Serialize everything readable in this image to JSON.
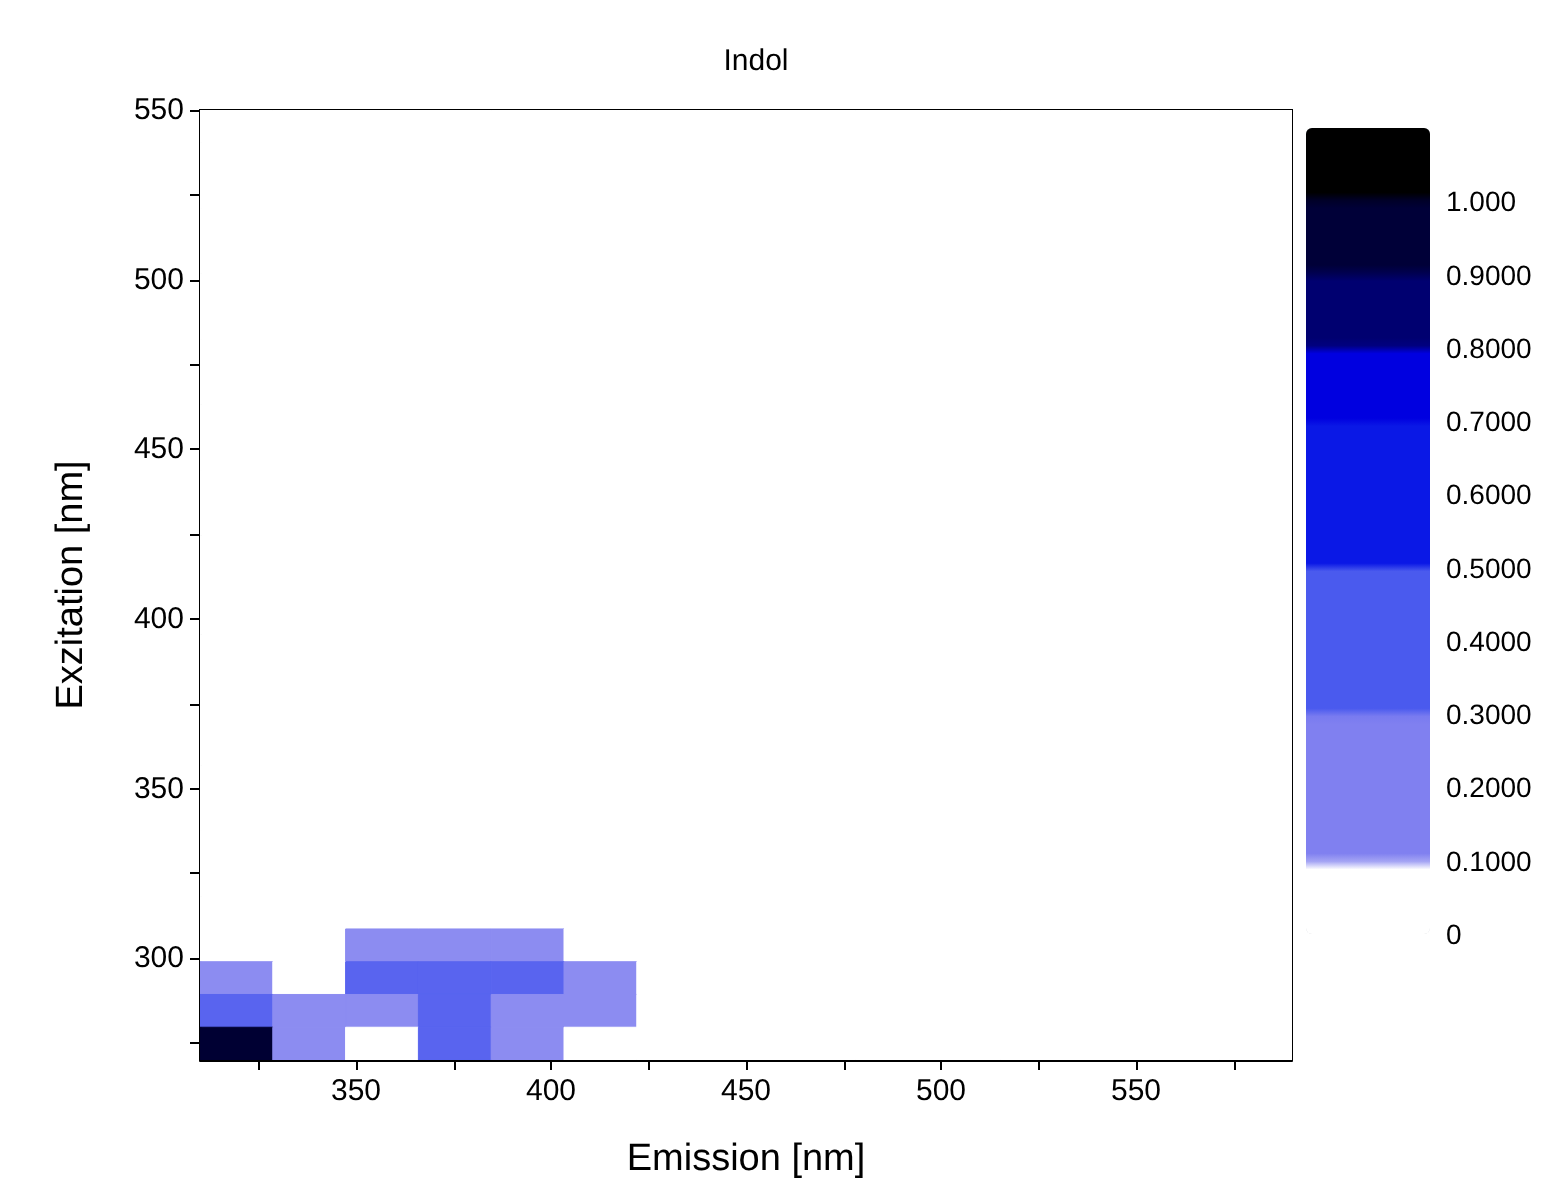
{
  "chart_data": {
    "type": "heatmap",
    "title": "Indol",
    "xlabel": "Emission [nm]",
    "ylabel": "Exzitation [nm]",
    "xlim": [
      310,
      590
    ],
    "ylim": [
      270,
      550
    ],
    "xticks": [
      {
        "value": 325,
        "label": null
      },
      350,
      {
        "value": 375,
        "label": null
      },
      400,
      {
        "value": 425,
        "label": null
      },
      450,
      {
        "value": 475,
        "label": null
      },
      500,
      {
        "value": 525,
        "label": null
      },
      550,
      {
        "value": 575,
        "label": null
      }
    ],
    "yticks": [
      {
        "value": 275,
        "label": null
      },
      300,
      {
        "value": 325,
        "label": null
      },
      350,
      {
        "value": 375,
        "label": null
      },
      400,
      {
        "value": 425,
        "label": null
      },
      450,
      {
        "value": 475,
        "label": null
      },
      500,
      {
        "value": 525,
        "label": null
      },
      550
    ],
    "cells": [
      [
        0,
        0,
        0,
        0,
        0,
        0,
        0,
        0,
        0,
        0,
        0,
        0,
        0,
        0,
        0
      ],
      [
        0,
        0,
        0,
        0,
        0,
        0,
        0,
        0,
        0,
        0,
        0,
        0,
        0,
        0,
        0
      ],
      [
        0,
        0,
        0,
        0,
        0,
        0,
        0,
        0,
        0,
        0,
        0,
        0,
        0,
        0,
        0
      ],
      [
        0,
        0,
        0,
        0,
        0,
        0,
        0,
        0,
        0,
        0,
        0,
        0,
        0,
        0,
        0
      ],
      [
        0,
        0,
        0,
        0,
        0,
        0,
        0,
        0,
        0,
        0,
        0,
        0,
        0,
        0,
        0
      ],
      [
        0,
        0,
        0,
        0,
        0,
        0,
        0,
        0,
        0,
        0,
        0,
        0,
        0,
        0,
        0
      ],
      [
        0,
        0,
        0,
        0,
        0,
        0,
        0,
        0,
        0,
        0,
        0,
        0,
        0,
        0,
        0
      ],
      [
        0,
        0,
        0,
        0,
        0,
        0,
        0,
        0,
        0,
        0,
        0,
        0,
        0,
        0,
        0
      ],
      [
        0,
        0,
        0,
        0,
        0,
        0,
        0,
        0,
        0,
        0,
        0,
        0,
        0,
        0,
        0
      ],
      [
        0,
        0,
        0,
        0,
        0,
        0,
        0,
        0,
        0,
        0,
        0,
        0,
        0,
        0,
        0
      ],
      [
        0,
        0,
        0,
        0,
        0,
        0,
        0,
        0,
        0,
        0,
        0,
        0,
        0,
        0,
        0
      ],
      [
        0,
        0,
        0,
        0,
        0,
        0,
        0,
        0,
        0,
        0,
        0,
        0,
        0,
        0,
        0
      ],
      [
        0,
        0,
        0,
        0,
        0,
        0,
        0,
        0,
        0,
        0,
        0,
        0,
        0,
        0,
        0
      ],
      [
        0,
        0,
        0,
        0,
        0,
        0,
        0,
        0,
        0,
        0,
        0,
        0,
        0,
        0,
        0
      ],
      [
        0,
        0,
        0,
        0,
        0,
        0,
        0,
        0,
        0,
        0,
        0,
        0,
        0,
        0,
        0
      ],
      [
        0,
        0,
        0,
        0,
        0,
        0,
        0,
        0,
        0,
        0,
        0,
        0,
        0,
        0,
        0
      ],
      [
        0,
        0,
        0,
        0,
        0,
        0,
        0,
        0,
        0,
        0,
        0,
        0,
        0,
        0,
        0
      ],
      [
        0,
        0,
        0,
        0,
        0,
        0,
        0,
        0,
        0,
        0,
        0,
        0,
        0,
        0,
        0
      ],
      [
        0,
        0,
        0,
        0,
        0,
        0,
        0,
        0,
        0,
        0,
        0,
        0,
        0,
        0,
        0
      ],
      [
        0,
        0,
        0,
        0,
        0,
        0,
        0,
        0,
        0,
        0,
        0,
        0,
        0,
        0,
        0
      ],
      [
        0,
        0,
        0,
        0,
        0,
        0,
        0,
        0,
        0,
        0,
        0,
        0,
        0,
        0,
        0
      ],
      [
        0,
        0,
        0,
        0,
        0,
        0,
        0,
        0,
        0,
        0,
        0,
        0,
        0,
        0,
        0
      ],
      [
        0,
        0,
        0,
        0,
        0,
        0,
        0,
        0,
        0,
        0,
        0,
        0,
        0,
        0,
        0
      ],
      [
        0,
        0,
        0,
        0,
        0,
        0,
        0,
        0,
        0,
        0,
        0,
        0,
        0,
        0,
        0
      ],
      [
        0,
        0,
        0,
        0,
        0,
        0,
        0,
        0,
        0,
        0,
        0,
        0,
        0,
        0,
        0
      ],
      [
        0,
        0,
        0.1,
        0.1,
        0.1,
        0,
        0,
        0,
        0,
        0,
        0,
        0,
        0,
        0,
        0
      ],
      [
        0.1,
        0,
        0.3,
        0.3,
        0.3,
        0.1,
        0,
        0,
        0,
        0,
        0,
        0,
        0,
        0,
        0
      ],
      [
        0.3,
        0.1,
        0.1,
        0.3,
        0.1,
        0.1,
        0,
        0,
        0,
        0,
        0,
        0,
        0,
        0,
        0
      ],
      [
        1.0,
        0.1,
        0,
        0.3,
        0.1,
        0,
        0,
        0,
        0,
        0,
        0,
        0,
        0,
        0,
        0
      ]
    ],
    "clim": [
      0,
      1.1
    ],
    "cticks": [
      0,
      {
        "value": 0.1,
        "label": "0.1000"
      },
      {
        "value": 0.2,
        "label": "0.2000"
      },
      {
        "value": 0.3,
        "label": "0.3000"
      },
      {
        "value": 0.4,
        "label": "0.4000"
      },
      {
        "value": 0.5,
        "label": "0.5000"
      },
      {
        "value": 0.6,
        "label": "0.6000"
      },
      {
        "value": 0.7,
        "label": "0.7000"
      },
      {
        "value": 0.8,
        "label": "0.8000"
      },
      {
        "value": 0.9,
        "label": "0.9000"
      },
      {
        "value": 1.0,
        "label": "1.000"
      }
    ],
    "colors": [
      "#ffffff",
      "#8080f0",
      "#8080f0",
      "#4a5aee",
      "#4a5aee",
      "#0a18e6",
      "#0a18e6",
      "#0000e0",
      "#000070",
      "#000038",
      "#000000"
    ]
  }
}
